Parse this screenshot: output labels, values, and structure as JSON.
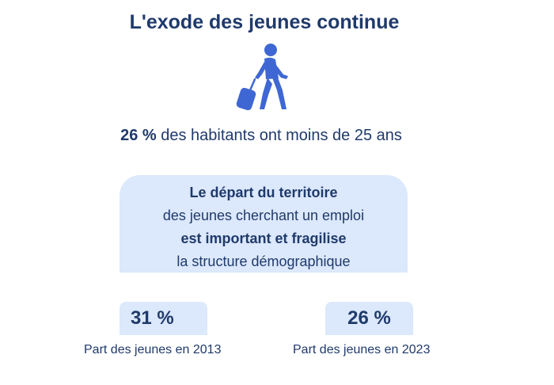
{
  "title": "L'exode des jeunes continue",
  "icon": "traveler-with-suitcase-icon",
  "stat": {
    "value": "26 %",
    "text": " des habitants ont moins de 25 ans"
  },
  "callout": {
    "line1": "Le départ du territoire",
    "line2": "des jeunes cherchant un emploi",
    "line3": "est important et fragilise",
    "line4": "la structure démographique"
  },
  "comparison": [
    {
      "value": "31 %",
      "caption": "Part des jeunes en 2013"
    },
    {
      "value": "26 %",
      "caption": "Part des jeunes en 2023"
    }
  ],
  "colors": {
    "text": "#1f3a6b",
    "icon": "#3f67d4",
    "panel": "#dce8fb"
  }
}
